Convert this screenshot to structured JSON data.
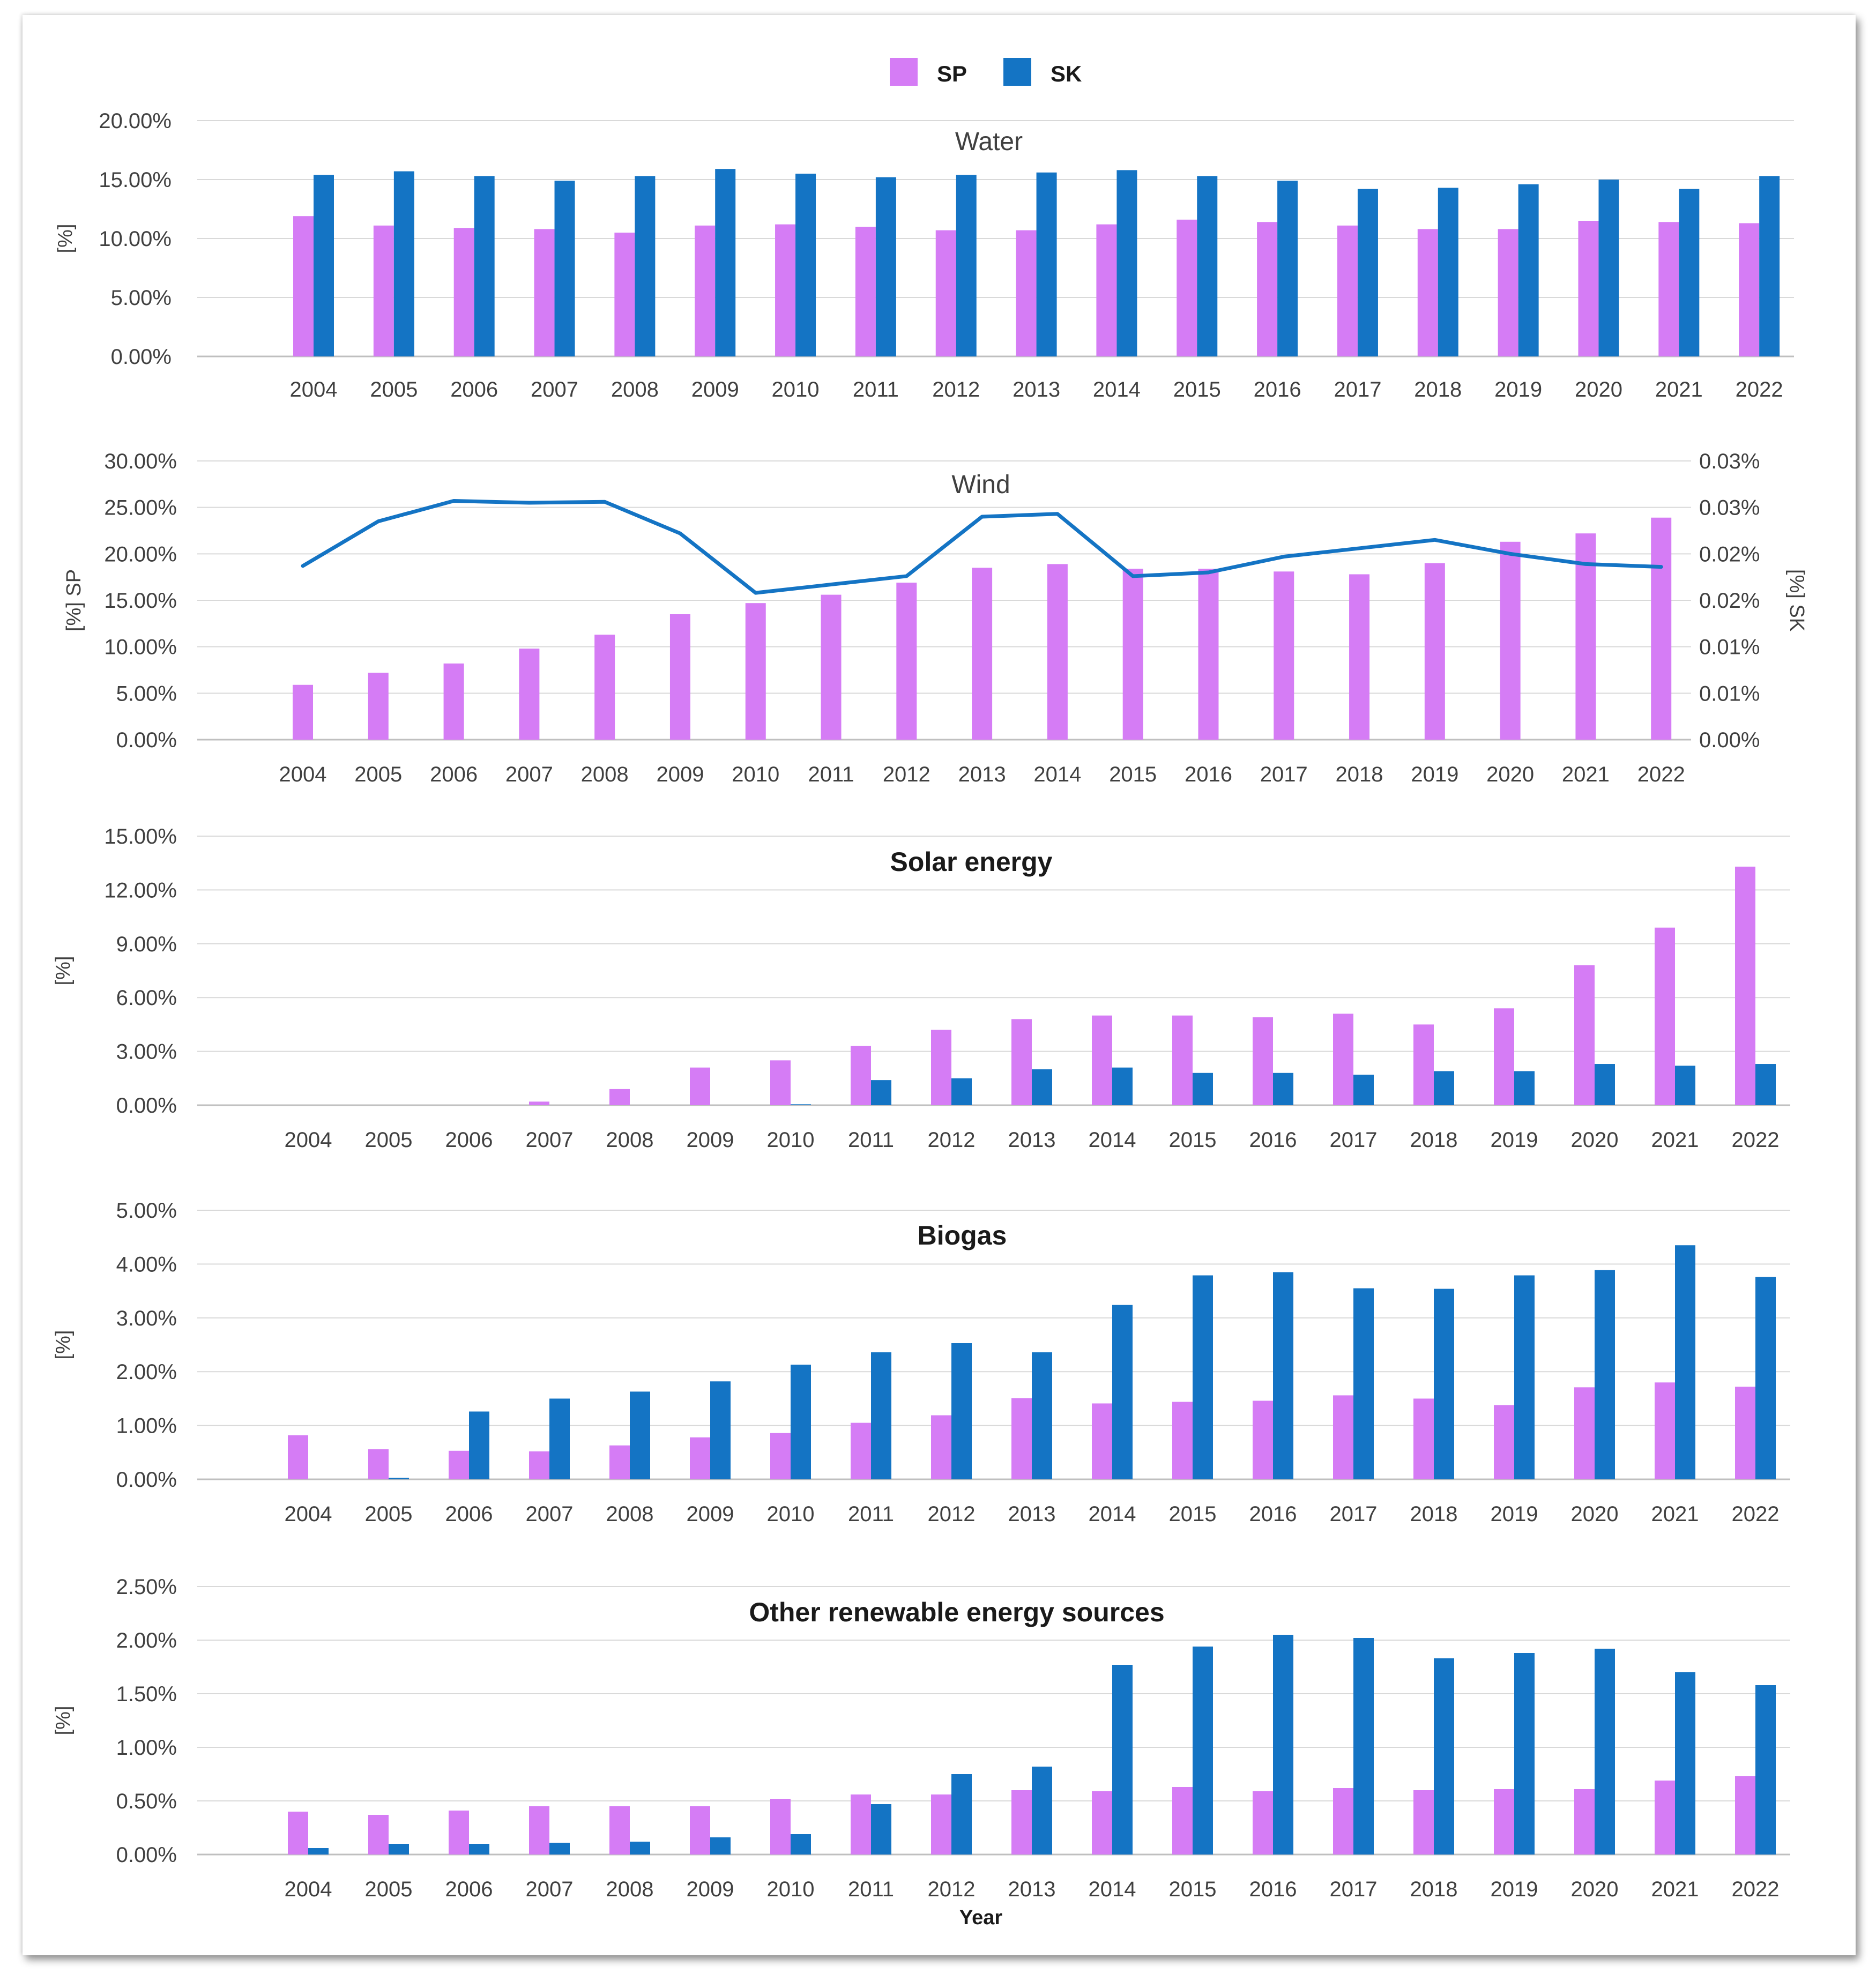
{
  "colors": {
    "SP": "#d57cf5",
    "SK": "#1474c4",
    "grid": "#d9d9d9",
    "axis": "#bfbfbf"
  },
  "legend": {
    "sp_label": "SP",
    "sk_label": "SK"
  },
  "x_axis_title": "Year",
  "chart_data": [
    {
      "type": "bar",
      "title": "Water",
      "title_bold": false,
      "ylabel": "[%]",
      "ylim": [
        0,
        20
      ],
      "yticks": [
        "0.00%",
        "5.00%",
        "10.00%",
        "15.00%",
        "20.00%"
      ],
      "categories": [
        "2004",
        "2005",
        "2006",
        "2007",
        "2008",
        "2009",
        "2010",
        "2011",
        "2012",
        "2013",
        "2014",
        "2015",
        "2016",
        "2017",
        "2018",
        "2019",
        "2020",
        "2021",
        "2022"
      ],
      "series": [
        {
          "name": "SP",
          "values": [
            11.9,
            11.1,
            10.9,
            10.8,
            10.5,
            11.1,
            11.2,
            11.0,
            10.7,
            10.7,
            11.2,
            11.6,
            11.4,
            11.1,
            10.8,
            10.8,
            11.5,
            11.4,
            11.3
          ]
        },
        {
          "name": "SK",
          "values": [
            15.4,
            15.7,
            15.3,
            14.9,
            15.3,
            15.9,
            15.5,
            15.2,
            15.4,
            15.6,
            15.8,
            15.3,
            14.9,
            14.2,
            14.3,
            14.6,
            15.0,
            14.2,
            15.3
          ]
        }
      ]
    },
    {
      "type": "bar+line",
      "title": "Wind",
      "title_bold": false,
      "ylabel": "[%] SP",
      "y2label": "[%] SK",
      "ylim": [
        0,
        30
      ],
      "y2lim": [
        0,
        0.03
      ],
      "yticks": [
        "0.00%",
        "5.00%",
        "10.00%",
        "15.00%",
        "20.00%",
        "25.00%",
        "30.00%"
      ],
      "y2ticks": [
        "0.00%",
        "0.01%",
        "0.01%",
        "0.02%",
        "0.02%",
        "0.03%",
        "0.03%"
      ],
      "categories": [
        "2004",
        "2005",
        "2006",
        "2007",
        "2008",
        "2009",
        "2010",
        "2011",
        "2012",
        "2013",
        "2014",
        "2015",
        "2016",
        "2017",
        "2018",
        "2019",
        "2020",
        "2021",
        "2022"
      ],
      "series": [
        {
          "name": "SP",
          "kind": "bar",
          "values": [
            5.9,
            7.2,
            8.2,
            9.8,
            11.3,
            13.5,
            14.7,
            15.6,
            16.9,
            18.5,
            18.9,
            18.4,
            18.4,
            18.1,
            17.8,
            19.0,
            21.3,
            22.2,
            23.9
          ]
        },
        {
          "name": "SK",
          "kind": "line",
          "values": [
            0.0187,
            0.0235,
            0.0257,
            0.0255,
            0.0256,
            0.0222,
            0.0158,
            0.0167,
            0.0176,
            0.024,
            0.0243,
            0.0176,
            0.018,
            0.0197,
            0.0206,
            0.0215,
            0.02,
            0.0189,
            0.0186
          ]
        }
      ]
    },
    {
      "type": "bar",
      "title": "Solar energy",
      "title_bold": true,
      "ylabel": "[%]",
      "ylim": [
        0,
        15
      ],
      "yticks": [
        "0.00%",
        "3.00%",
        "6.00%",
        "9.00%",
        "12.00%",
        "15.00%"
      ],
      "categories": [
        "2004",
        "2005",
        "2006",
        "2007",
        "2008",
        "2009",
        "2010",
        "2011",
        "2012",
        "2013",
        "2014",
        "2015",
        "2016",
        "2017",
        "2018",
        "2019",
        "2020",
        "2021",
        "2022"
      ],
      "series": [
        {
          "name": "SP",
          "values": [
            0,
            0,
            0,
            0.2,
            0.9,
            2.1,
            2.5,
            3.3,
            4.2,
            4.8,
            5.0,
            5.0,
            4.9,
            5.1,
            4.5,
            5.4,
            7.8,
            9.9,
            13.3
          ]
        },
        {
          "name": "SK",
          "values": [
            0,
            0,
            0,
            0,
            0,
            0,
            0.05,
            1.4,
            1.5,
            2.0,
            2.1,
            1.8,
            1.8,
            1.7,
            1.9,
            1.9,
            2.3,
            2.2,
            2.3
          ]
        }
      ]
    },
    {
      "type": "bar",
      "title": "Biogas",
      "title_bold": true,
      "ylabel": "[%]",
      "ylim": [
        0,
        5
      ],
      "yticks": [
        "0.00%",
        "1.00%",
        "2.00%",
        "3.00%",
        "4.00%",
        "5.00%"
      ],
      "categories": [
        "2004",
        "2005",
        "2006",
        "2007",
        "2008",
        "2009",
        "2010",
        "2011",
        "2012",
        "2013",
        "2014",
        "2015",
        "2016",
        "2017",
        "2018",
        "2019",
        "2020",
        "2021",
        "2022"
      ],
      "series": [
        {
          "name": "SP",
          "values": [
            0.82,
            0.56,
            0.53,
            0.52,
            0.63,
            0.78,
            0.86,
            1.05,
            1.19,
            1.51,
            1.41,
            1.44,
            1.46,
            1.56,
            1.5,
            1.38,
            1.71,
            1.8,
            1.72
          ]
        },
        {
          "name": "SK",
          "values": [
            0,
            0.03,
            1.26,
            1.5,
            1.63,
            1.82,
            2.13,
            2.36,
            2.53,
            2.36,
            3.24,
            3.79,
            3.85,
            3.55,
            3.54,
            3.79,
            3.89,
            4.35,
            3.76
          ]
        }
      ]
    },
    {
      "type": "bar",
      "title": "Other renewable energy sources",
      "title_bold": true,
      "ylabel": "[%]",
      "ylim": [
        0,
        2.5
      ],
      "yticks": [
        "0.00%",
        "0.50%",
        "1.00%",
        "1.50%",
        "2.00%",
        "2.50%"
      ],
      "categories": [
        "2004",
        "2005",
        "2006",
        "2007",
        "2008",
        "2009",
        "2010",
        "2011",
        "2012",
        "2013",
        "2014",
        "2015",
        "2016",
        "2017",
        "2018",
        "2019",
        "2020",
        "2021",
        "2022"
      ],
      "series": [
        {
          "name": "SP",
          "values": [
            0.4,
            0.37,
            0.41,
            0.45,
            0.45,
            0.45,
            0.52,
            0.56,
            0.56,
            0.6,
            0.59,
            0.63,
            0.59,
            0.62,
            0.6,
            0.61,
            0.61,
            0.69,
            0.73
          ]
        },
        {
          "name": "SK",
          "values": [
            0.06,
            0.1,
            0.1,
            0.11,
            0.12,
            0.16,
            0.19,
            0.47,
            0.75,
            0.82,
            1.77,
            1.94,
            2.05,
            2.02,
            1.83,
            1.88,
            1.92,
            1.7,
            1.58
          ]
        }
      ]
    }
  ]
}
